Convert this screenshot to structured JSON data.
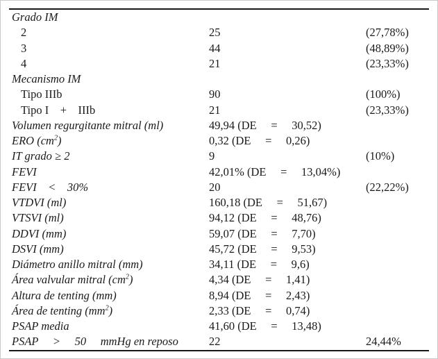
{
  "colors": {
    "background": "#ffffff",
    "frame": "#c9c9c9",
    "rule": "#161616",
    "text": "#1a1a1a"
  },
  "table": {
    "rows": [
      {
        "label": "Grado IM",
        "italic": true,
        "indent": false,
        "value": "",
        "pct": ""
      },
      {
        "label": "2",
        "italic": false,
        "indent": true,
        "value": "25",
        "pct": "(27,78%)"
      },
      {
        "label": "3",
        "italic": false,
        "indent": true,
        "value": "44",
        "pct": "(48,89%)"
      },
      {
        "label": "4",
        "italic": false,
        "indent": true,
        "value": "21",
        "pct": "(23,33%)"
      },
      {
        "label": "Mecanismo IM",
        "italic": true,
        "indent": false,
        "value": "",
        "pct": ""
      },
      {
        "label": "Tipo IIIb",
        "italic": false,
        "indent": true,
        "value": "90",
        "pct": "(100%)"
      },
      {
        "label": "Tipo I    +    IIIb",
        "italic": false,
        "indent": true,
        "value": "21",
        "pct": "(23,33%)"
      },
      {
        "label": "Volumen regurgitante mitral (ml)",
        "italic": true,
        "indent": false,
        "value": "49,94 (DE     =     30,52)",
        "pct": ""
      },
      {
        "label": "ERO (cm²)",
        "italic": true,
        "indent": false,
        "value": "0,32 (DE     =     0,26)",
        "pct": ""
      },
      {
        "label": "IT grado ≥ 2",
        "italic": true,
        "indent": false,
        "value": "9",
        "pct": "(10%)"
      },
      {
        "label": "FEVI",
        "italic": true,
        "indent": false,
        "value": "42,01% (DE     =     13,04%)",
        "pct": ""
      },
      {
        "label": "FEVI    <    30%",
        "italic": true,
        "indent": false,
        "value": "20",
        "pct": "(22,22%)"
      },
      {
        "label": "VTDVI (ml)",
        "italic": true,
        "indent": false,
        "value": "160,18 (DE     =     51,67)",
        "pct": ""
      },
      {
        "label": "VTSVI (ml)",
        "italic": true,
        "indent": false,
        "value": "94,12 (DE     =     48,76)",
        "pct": ""
      },
      {
        "label": "DDVI (mm)",
        "italic": true,
        "indent": false,
        "value": "59,07 (DE     =     7,70)",
        "pct": ""
      },
      {
        "label": "DSVI (mm)",
        "italic": true,
        "indent": false,
        "value": "45,72 (DE     =     9,53)",
        "pct": ""
      },
      {
        "label": "Diámetro anillo mitral (mm)",
        "italic": true,
        "indent": false,
        "value": "34,11 (DE     =     9,6)",
        "pct": ""
      },
      {
        "label": "Área valvular mitral (cm²)",
        "italic": true,
        "indent": false,
        "value": "4,34 (DE     =     1,41)",
        "pct": ""
      },
      {
        "label": "Altura de tenting (mm)",
        "italic": true,
        "indent": false,
        "value": "8,94 (DE     =     2,43)",
        "pct": ""
      },
      {
        "label": "Área de tenting (mm²)",
        "italic": true,
        "indent": false,
        "value": "2,33 (DE     =     0,74)",
        "pct": ""
      },
      {
        "label": "PSAP media",
        "italic": true,
        "indent": false,
        "value": "41,60 (DE     =     13,48)",
        "pct": ""
      },
      {
        "label": "PSAP     >     50     mmHg en reposo",
        "italic": true,
        "indent": false,
        "value": "22",
        "pct": "24,44%"
      }
    ]
  }
}
